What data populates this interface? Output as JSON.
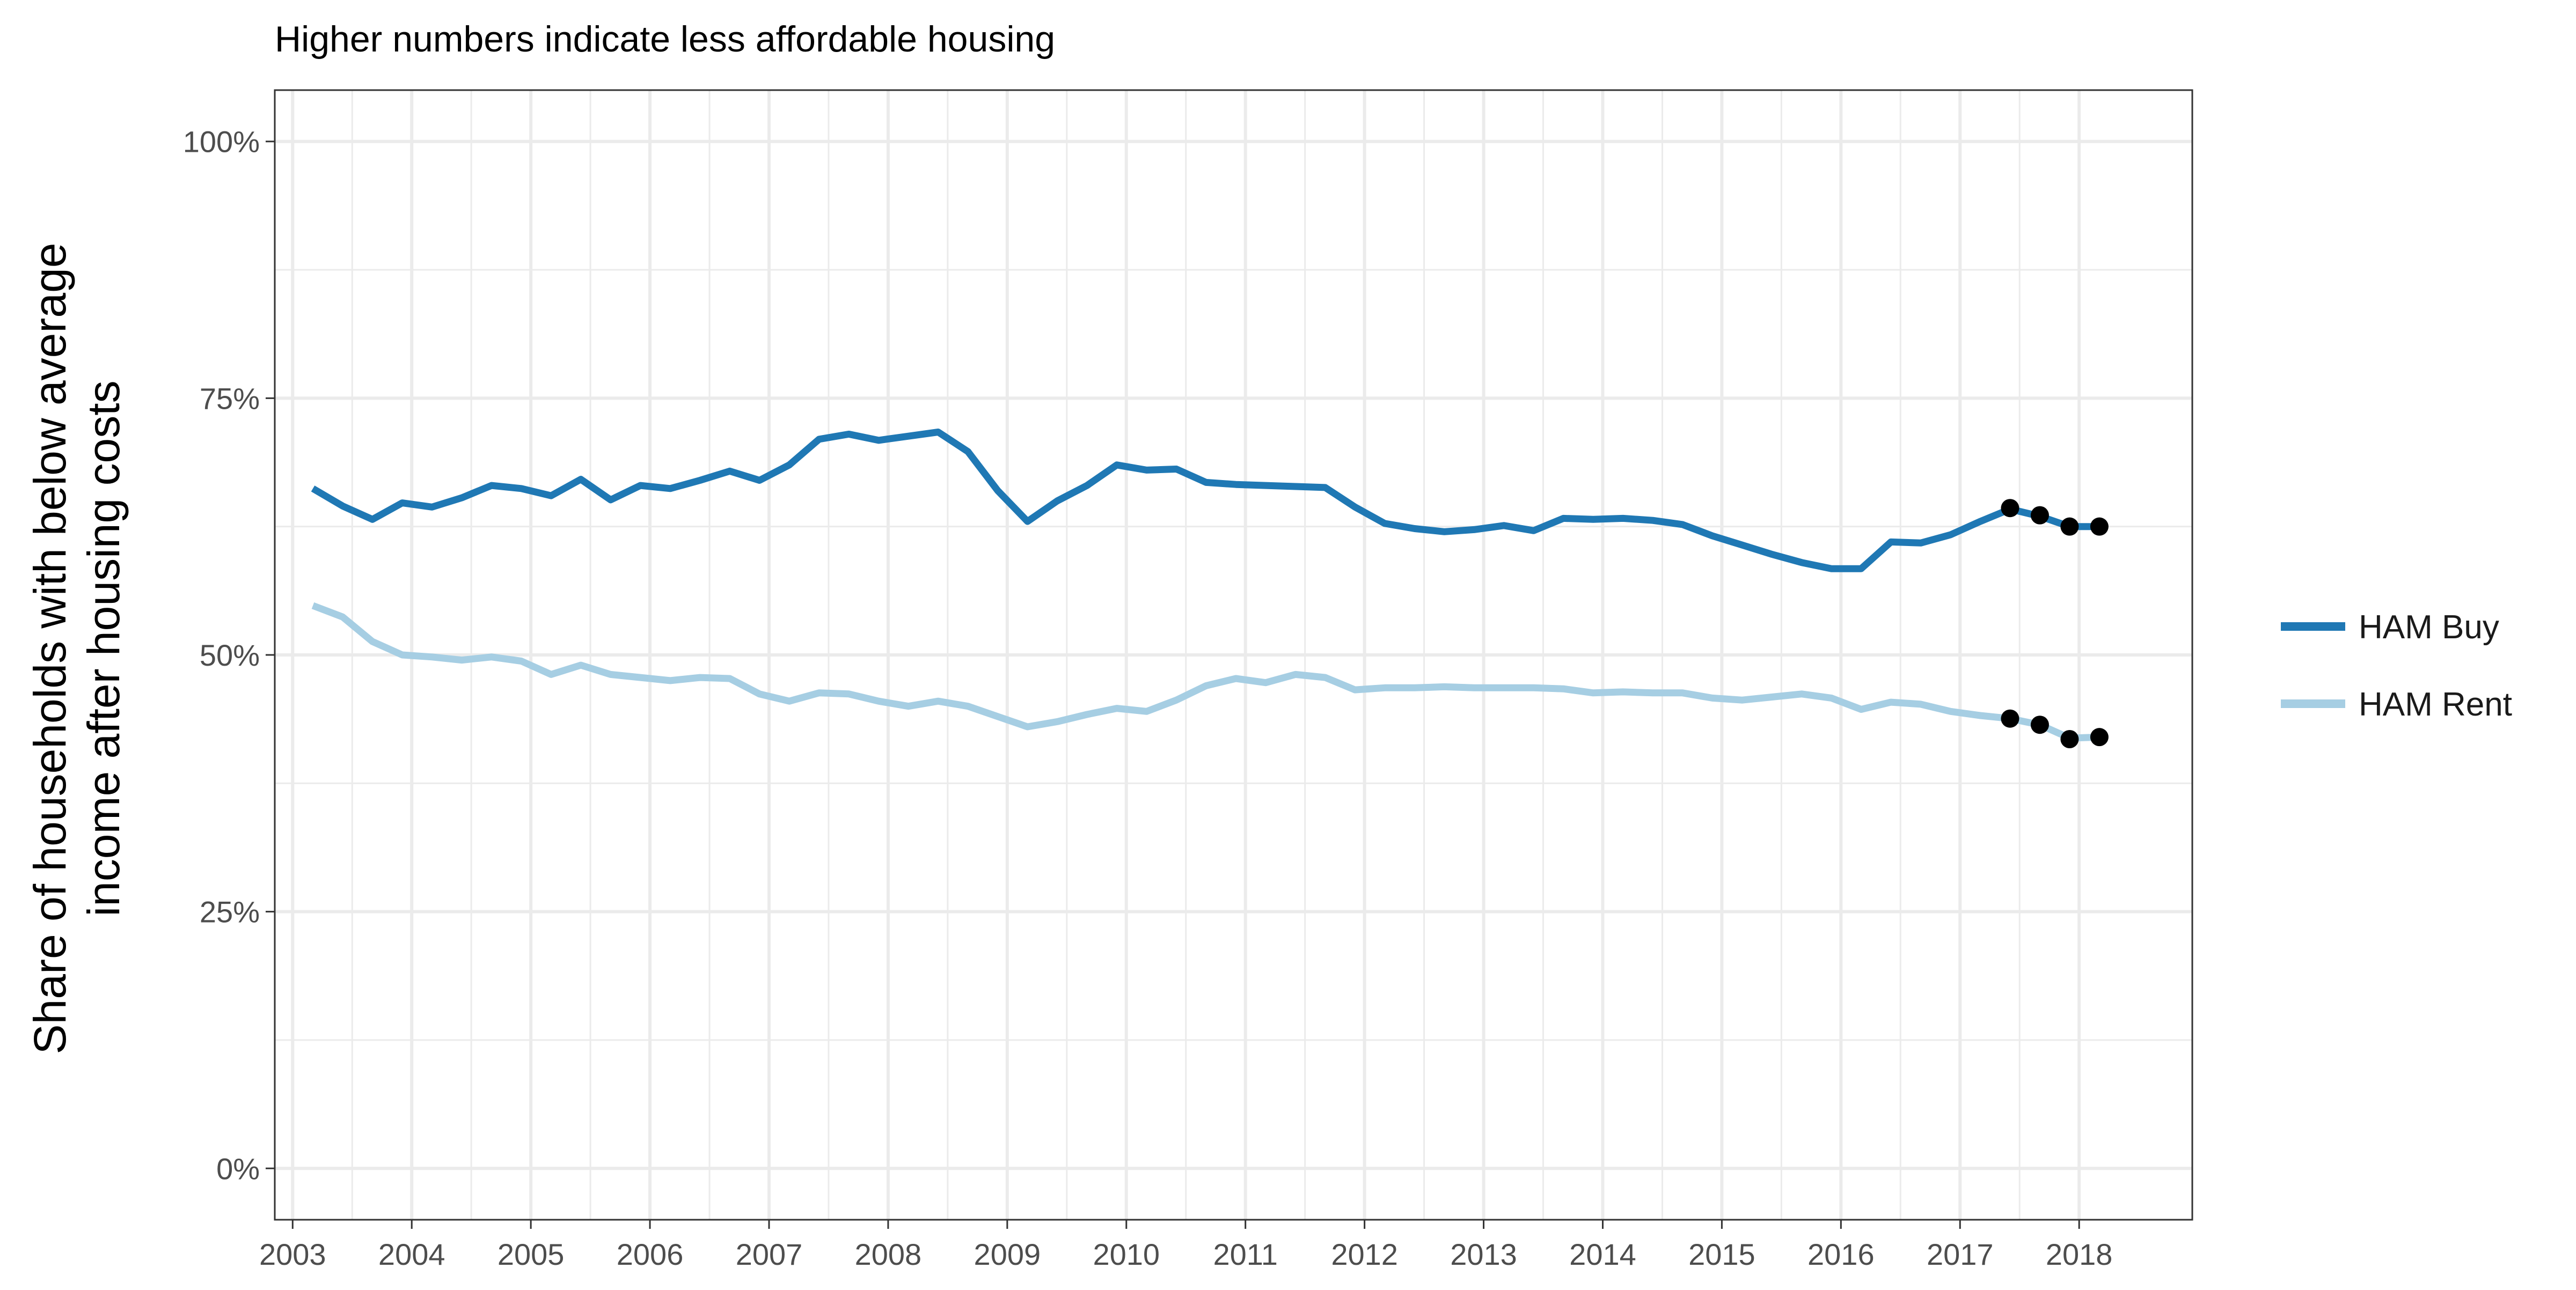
{
  "chart_data": {
    "type": "line",
    "subtitle": "Higher numbers indicate less affordable housing",
    "title": "",
    "xlabel": "",
    "ylabel_lines": [
      "Share of households with below average",
      "income after housing costs"
    ],
    "xlim": [
      2002.85,
      2018.95
    ],
    "ylim": [
      -0.05,
      1.05
    ],
    "x_ticks": [
      2003,
      2004,
      2005,
      2006,
      2007,
      2008,
      2009,
      2010,
      2011,
      2012,
      2013,
      2014,
      2015,
      2016,
      2017,
      2018
    ],
    "x_tick_labels": [
      "2003",
      "2004",
      "2005",
      "2006",
      "2007",
      "2008",
      "2009",
      "2010",
      "2011",
      "2012",
      "2013",
      "2014",
      "2015",
      "2016",
      "2017",
      "2018"
    ],
    "y_ticks": [
      0,
      0.25,
      0.5,
      0.75,
      1.0
    ],
    "y_tick_labels": [
      "0%",
      "25%",
      "50%",
      "75%",
      "100%"
    ],
    "y_minor_ticks": [
      0.125,
      0.375,
      0.625,
      0.875
    ],
    "x_minor_ticks": [
      2003.5,
      2004.5,
      2005.5,
      2006.5,
      2007.5,
      2008.5,
      2009.5,
      2010.5,
      2011.5,
      2012.5,
      2013.5,
      2014.5,
      2015.5,
      2016.5,
      2017.5
    ],
    "grid": true,
    "legend_position": "right",
    "x": [
      2003.17,
      2003.42,
      2003.67,
      2003.92,
      2004.17,
      2004.42,
      2004.67,
      2004.92,
      2005.17,
      2005.42,
      2005.67,
      2005.92,
      2006.17,
      2006.42,
      2006.67,
      2006.92,
      2007.17,
      2007.42,
      2007.67,
      2007.92,
      2008.17,
      2008.42,
      2008.67,
      2008.92,
      2009.17,
      2009.42,
      2009.67,
      2009.92,
      2010.17,
      2010.42,
      2010.67,
      2010.92,
      2011.17,
      2011.42,
      2011.67,
      2011.92,
      2012.17,
      2012.42,
      2012.67,
      2012.92,
      2013.17,
      2013.42,
      2013.67,
      2013.92,
      2014.17,
      2014.42,
      2014.67,
      2014.92,
      2015.17,
      2015.42,
      2015.67,
      2015.92,
      2016.17,
      2016.42,
      2016.67,
      2016.92,
      2017.17,
      2017.42,
      2017.67,
      2017.92,
      2018.17
    ],
    "series": [
      {
        "name": "HAM Buy",
        "color": "#1f78b4",
        "values": [
          0.662,
          0.645,
          0.632,
          0.648,
          0.644,
          0.653,
          0.665,
          0.662,
          0.655,
          0.671,
          0.651,
          0.665,
          0.662,
          0.67,
          0.679,
          0.67,
          0.685,
          0.71,
          0.715,
          0.709,
          0.713,
          0.717,
          0.698,
          0.66,
          0.63,
          0.65,
          0.665,
          0.685,
          0.68,
          0.681,
          0.668,
          0.666,
          0.665,
          0.664,
          0.663,
          0.644,
          0.628,
          0.623,
          0.62,
          0.622,
          0.626,
          0.621,
          0.633,
          0.632,
          0.633,
          0.631,
          0.627,
          0.616,
          0.607,
          0.598,
          0.59,
          0.584,
          0.584,
          0.61,
          0.609,
          0.617,
          0.63,
          0.642,
          0.635,
          0.625,
          0.625
        ]
      },
      {
        "name": "HAM Rent",
        "color": "#a6cee3",
        "values": [
          0.548,
          0.537,
          0.513,
          0.5,
          0.498,
          0.495,
          0.498,
          0.494,
          0.481,
          0.49,
          0.481,
          0.478,
          0.475,
          0.478,
          0.477,
          0.462,
          0.455,
          0.463,
          0.462,
          0.455,
          0.45,
          0.455,
          0.45,
          0.44,
          0.43,
          0.435,
          0.442,
          0.448,
          0.445,
          0.456,
          0.47,
          0.477,
          0.473,
          0.481,
          0.478,
          0.466,
          0.468,
          0.468,
          0.469,
          0.468,
          0.468,
          0.468,
          0.467,
          0.463,
          0.464,
          0.463,
          0.463,
          0.458,
          0.456,
          0.459,
          0.462,
          0.458,
          0.447,
          0.454,
          0.452,
          0.445,
          0.441,
          0.438,
          0.432,
          0.419,
          0.42
        ]
      }
    ],
    "forecast_points": {
      "color": "#000000",
      "x": [
        2017.42,
        2017.67,
        2017.92,
        2018.17
      ],
      "HAM Buy": [
        0.643,
        0.636,
        0.625,
        0.625
      ],
      "HAM Rent": [
        0.438,
        0.432,
        0.418,
        0.42
      ]
    }
  }
}
